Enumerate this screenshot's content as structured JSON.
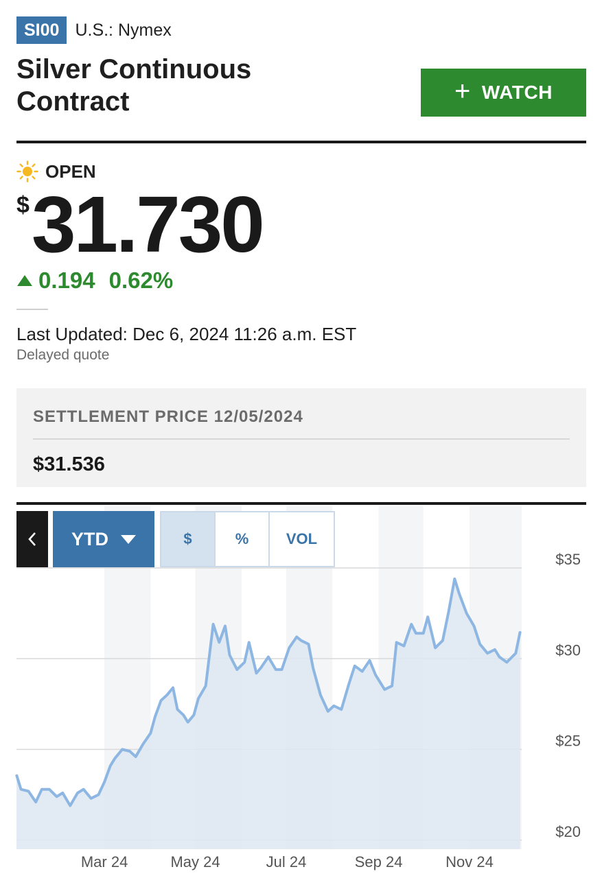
{
  "header": {
    "ticker": "SI00",
    "exchange": "U.S.: Nymex",
    "title": "Silver Continuous Contract",
    "watch_label": "WATCH"
  },
  "quote": {
    "status": "OPEN",
    "status_icon": "sun-icon",
    "currency": "$",
    "price": "31.730",
    "change": "0.194",
    "change_pct": "0.62%",
    "direction": "up",
    "last_updated": "Last Updated: Dec 6, 2024 11:26 a.m. EST",
    "delay_note": "Delayed quote"
  },
  "settlement": {
    "label": "SETTLEMENT PRICE 12/05/2024",
    "value": "$31.536"
  },
  "chart_controls": {
    "back_icon": "chevron-left-icon",
    "range": "YTD",
    "modes": [
      "$",
      "%",
      "VOL"
    ],
    "active_mode": "$"
  },
  "colors": {
    "accent": "#3b74a8",
    "watch": "#2e8a2e",
    "up": "#2e8a2e",
    "line": "#8db7e2",
    "fill": "#dde7f1"
  },
  "chart_data": {
    "type": "area",
    "title": "",
    "xlabel": "",
    "ylabel": "",
    "ylim": [
      19.5,
      35
    ],
    "y_ticks": [
      "$35",
      "$30",
      "$25",
      "$20"
    ],
    "y_tick_values": [
      35,
      30,
      25,
      20
    ],
    "x_ticks": [
      "Mar 24",
      "May 24",
      "Jul 24",
      "Sep 24",
      "Nov 24"
    ],
    "x_tick_dates": [
      "2024-03-01",
      "2024-05-01",
      "2024-07-01",
      "2024-09-01",
      "2024-11-01"
    ],
    "grid": true,
    "series": [
      {
        "x": [
          "2024-01-02",
          "2024-01-05",
          "2024-01-10",
          "2024-01-15",
          "2024-01-19",
          "2024-01-24",
          "2024-01-29",
          "2024-02-02",
          "2024-02-07",
          "2024-02-12",
          "2024-02-16",
          "2024-02-21",
          "2024-02-26",
          "2024-03-01",
          "2024-03-05",
          "2024-03-08",
          "2024-03-13",
          "2024-03-18",
          "2024-03-22",
          "2024-03-27",
          "2024-04-01",
          "2024-04-04",
          "2024-04-08",
          "2024-04-12",
          "2024-04-16",
          "2024-04-19",
          "2024-04-23",
          "2024-04-26",
          "2024-04-30",
          "2024-05-03",
          "2024-05-08",
          "2024-05-13",
          "2024-05-17",
          "2024-05-21",
          "2024-05-24",
          "2024-05-29",
          "2024-06-03",
          "2024-06-06",
          "2024-06-11",
          "2024-06-14",
          "2024-06-19",
          "2024-06-24",
          "2024-06-28",
          "2024-07-03",
          "2024-07-08",
          "2024-07-11",
          "2024-07-16",
          "2024-07-19",
          "2024-07-24",
          "2024-07-29",
          "2024-08-02",
          "2024-08-07",
          "2024-08-12",
          "2024-08-16",
          "2024-08-21",
          "2024-08-26",
          "2024-08-30",
          "2024-09-05",
          "2024-09-10",
          "2024-09-13",
          "2024-09-18",
          "2024-09-23",
          "2024-09-26",
          "2024-10-01",
          "2024-10-04",
          "2024-10-09",
          "2024-10-14",
          "2024-10-18",
          "2024-10-22",
          "2024-10-25",
          "2024-10-30",
          "2024-11-04",
          "2024-11-08",
          "2024-11-13",
          "2024-11-18",
          "2024-11-21",
          "2024-11-26",
          "2024-12-02",
          "2024-12-05"
        ],
        "values": [
          23.6,
          22.8,
          22.7,
          22.1,
          22.8,
          22.8,
          22.4,
          22.6,
          21.9,
          22.6,
          22.8,
          22.3,
          22.5,
          23.2,
          24.1,
          24.5,
          25.0,
          24.9,
          24.6,
          25.3,
          25.9,
          26.8,
          27.7,
          28.0,
          28.4,
          27.2,
          26.9,
          26.5,
          26.9,
          27.8,
          28.5,
          31.9,
          30.9,
          31.8,
          30.2,
          29.4,
          29.8,
          30.9,
          29.2,
          29.5,
          30.1,
          29.4,
          29.4,
          30.6,
          31.2,
          31.0,
          30.8,
          29.5,
          28.0,
          27.1,
          27.4,
          27.2,
          28.6,
          29.6,
          29.3,
          29.9,
          29.1,
          28.3,
          28.5,
          30.9,
          30.7,
          31.9,
          31.4,
          31.4,
          32.3,
          30.6,
          31.0,
          32.6,
          34.4,
          33.6,
          32.5,
          31.8,
          30.8,
          30.3,
          30.5,
          30.1,
          29.8,
          30.3,
          31.5
        ]
      }
    ]
  }
}
